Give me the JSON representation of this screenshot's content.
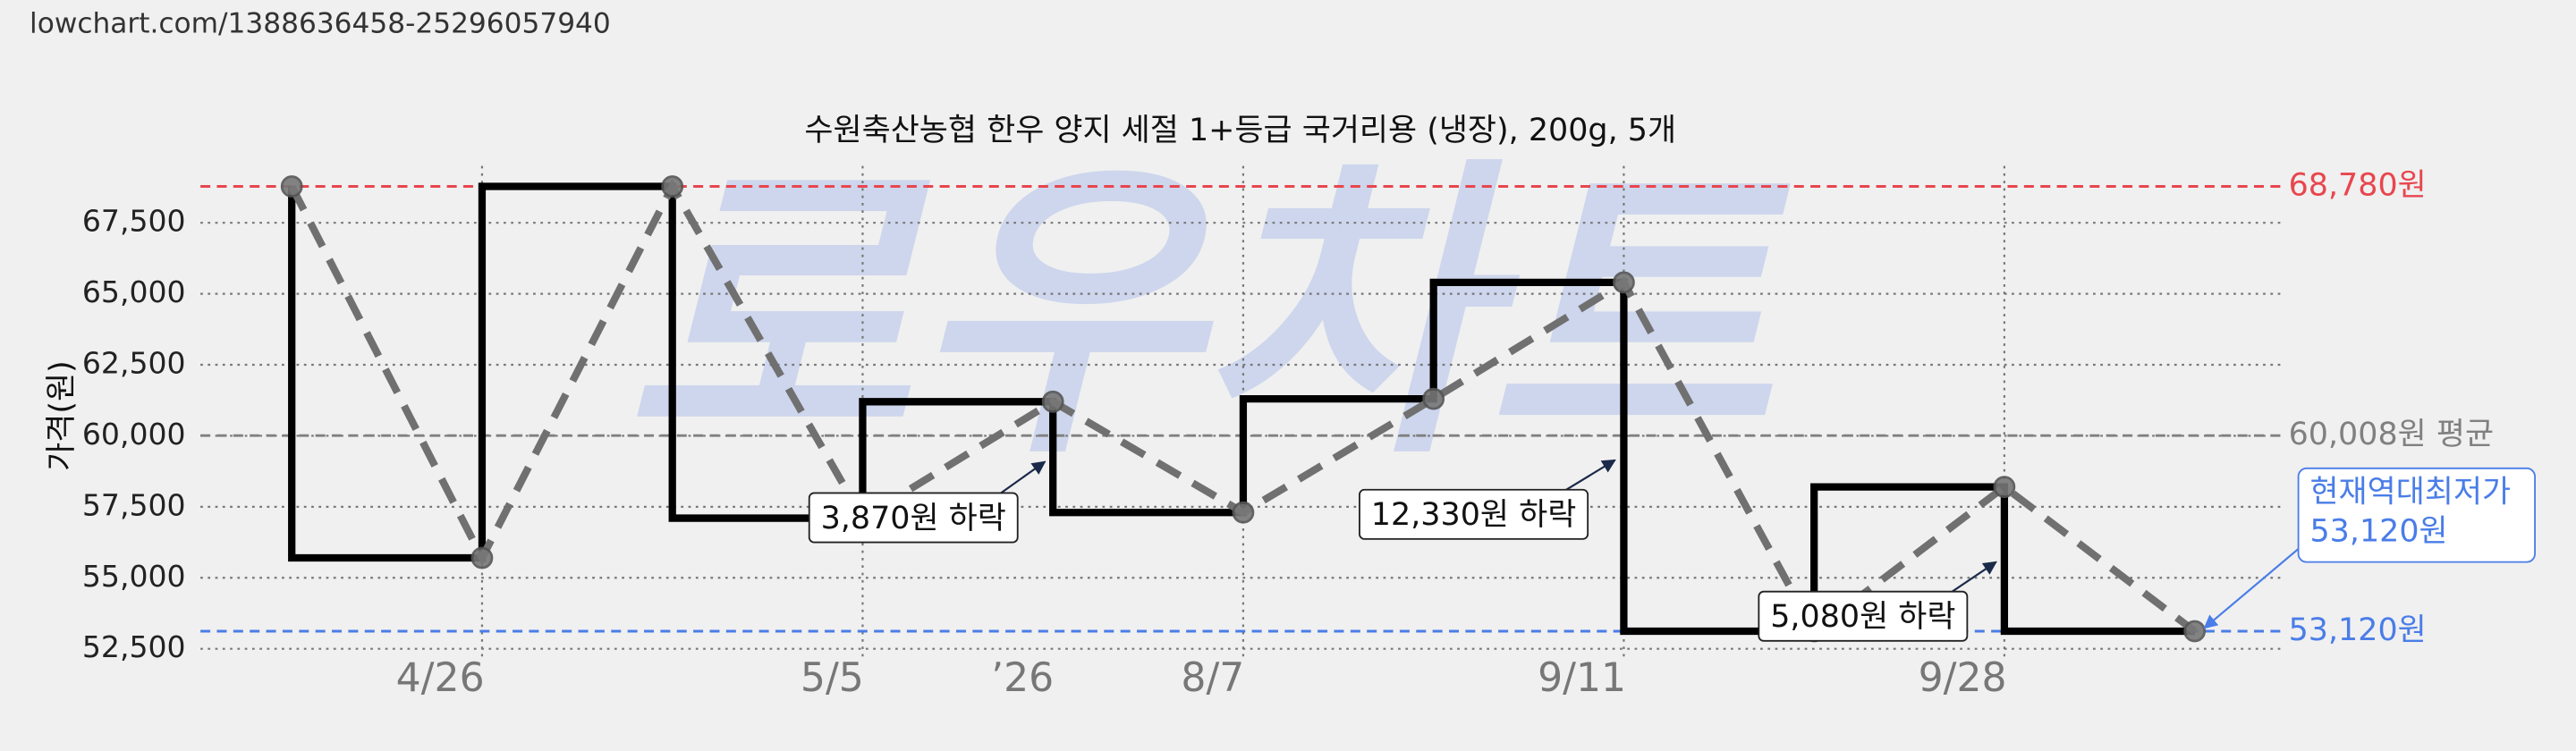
{
  "url": "lowchart.com/1388636458-25296057940",
  "chart_data": {
    "type": "step",
    "title": "수원축산농협 한우 양지 세절 1+등급 국거리용 (냉장), 200g, 5개",
    "ylabel": "가격(원)",
    "watermark": "로우차트",
    "x": [
      0,
      1,
      2,
      3,
      4,
      5,
      6,
      7,
      8,
      9,
      10
    ],
    "values": [
      68780,
      55700,
      68780,
      57100,
      61200,
      57300,
      61300,
      65400,
      53120,
      58200,
      53120
    ],
    "color": "#000000",
    "trend_color": "#707070",
    "xlim": [
      -0.48,
      10.45
    ],
    "xticks": [
      {
        "value": 0.78,
        "label": "4/26"
      },
      {
        "value": 2.84,
        "label": "5/5"
      },
      {
        "value": 3.84,
        "label": "’26"
      },
      {
        "value": 4.84,
        "label": "8/7"
      },
      {
        "value": 6.78,
        "label": "9/11"
      },
      {
        "value": 8.78,
        "label": "9/28"
      }
    ],
    "ylim": [
      52200,
      69500
    ],
    "yticks": [
      {
        "value": 52500,
        "label": "52,500"
      },
      {
        "value": 55000,
        "label": "55,000"
      },
      {
        "value": 57500,
        "label": "57,500"
      },
      {
        "value": 60000,
        "label": "60,000"
      },
      {
        "value": 62500,
        "label": "62,500"
      },
      {
        "value": 65000,
        "label": "65,000"
      },
      {
        "value": 67500,
        "label": "67,500"
      }
    ],
    "grid": true,
    "reference_lines": [
      {
        "value": 68780,
        "label": "68,780원",
        "color": "#e8464e"
      },
      {
        "value": 60008,
        "label": "60,008원 평균",
        "color": "#808080"
      },
      {
        "value": 53120,
        "label": "53,120원",
        "color": "#4a7de8"
      }
    ],
    "annotations": [
      {
        "text": "3,870원 하락"
      },
      {
        "text": "12,330원 하락"
      },
      {
        "text": "5,080원 하락"
      }
    ],
    "callout": [
      "현재역대최저가",
      "53,120원"
    ]
  }
}
